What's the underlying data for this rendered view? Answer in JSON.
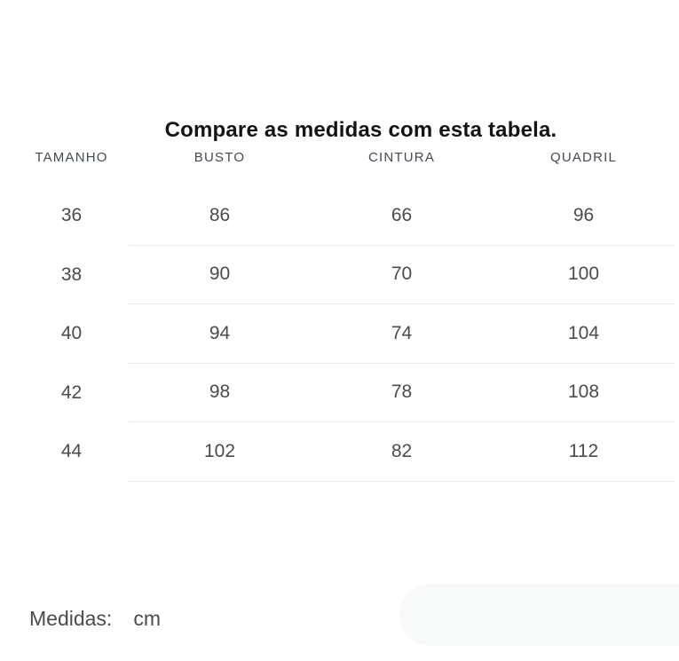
{
  "title": "Compare as medidas com esta tabela.",
  "table": {
    "headers": [
      "TAMANHO",
      "BUSTO",
      "CINTURA",
      "QUADRIL"
    ],
    "rows": [
      [
        "36",
        "86",
        "66",
        "96"
      ],
      [
        "38",
        "90",
        "70",
        "100"
      ],
      [
        "40",
        "94",
        "74",
        "104"
      ],
      [
        "42",
        "98",
        "78",
        "108"
      ],
      [
        "44",
        "102",
        "82",
        "112"
      ]
    ]
  },
  "footer": {
    "label": "Medidas:",
    "value": "cm"
  },
  "colors": {
    "title_text": "#141414",
    "header_text": "#454b53",
    "cell_text": "#4b4b4b",
    "divider": "#e9e9e9",
    "pill_background": "#f8f9f9"
  }
}
